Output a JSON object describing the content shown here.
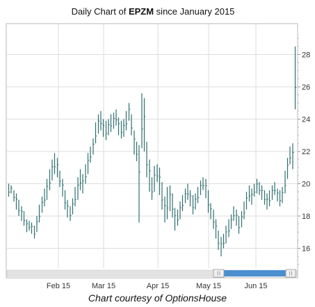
{
  "header": {
    "title_prefix": "Daily Chart of ",
    "ticker": "EPZM",
    "title_suffix": " since January 2015"
  },
  "footer": {
    "caption": "Chart courtesy of OptionsHouse"
  },
  "colors": {
    "bar": "#2f6f6f",
    "grid": "#dddddd",
    "border": "#b8b8b8",
    "scroll_thumb": "#4a90d0",
    "scroll_track": "#e0e0e0"
  },
  "chart_data": {
    "type": "ohlc",
    "title": "Daily Chart of EPZM since January 2015",
    "xlabel": "",
    "ylabel": "",
    "y_ticks": [
      16,
      18,
      20,
      22,
      24,
      26,
      28
    ],
    "ylim": [
      14.5,
      29.5
    ],
    "x_ticks": [
      "Feb 15",
      "Mar 15",
      "Apr 15",
      "May 15",
      "Jun 15"
    ],
    "grid": true,
    "bars": [
      [
        19.2,
        20.0
      ],
      [
        19.4,
        19.9
      ],
      [
        18.9,
        19.6
      ],
      [
        18.4,
        19.4
      ],
      [
        18.0,
        19.0
      ],
      [
        17.7,
        18.6
      ],
      [
        17.4,
        18.3
      ],
      [
        17.0,
        17.8
      ],
      [
        17.1,
        17.7
      ],
      [
        16.9,
        17.6
      ],
      [
        16.6,
        17.4
      ],
      [
        17.0,
        18.0
      ],
      [
        17.6,
        18.7
      ],
      [
        18.2,
        19.2
      ],
      [
        18.6,
        19.7
      ],
      [
        19.0,
        20.3
      ],
      [
        19.6,
        20.9
      ],
      [
        20.2,
        21.5
      ],
      [
        20.6,
        21.9
      ],
      [
        20.4,
        21.6
      ],
      [
        19.8,
        20.8
      ],
      [
        19.2,
        20.3
      ],
      [
        18.4,
        19.6
      ],
      [
        17.9,
        19.0
      ],
      [
        17.7,
        18.6
      ],
      [
        18.1,
        19.1
      ],
      [
        18.6,
        19.8
      ],
      [
        19.0,
        20.4
      ],
      [
        19.6,
        20.9
      ],
      [
        19.4,
        20.6
      ],
      [
        20.0,
        21.2
      ],
      [
        20.6,
        21.9
      ],
      [
        21.3,
        22.3
      ],
      [
        21.8,
        22.8
      ],
      [
        22.5,
        23.8
      ],
      [
        23.1,
        24.3
      ],
      [
        23.3,
        24.5
      ],
      [
        22.9,
        24.0
      ],
      [
        22.7,
        23.9
      ],
      [
        23.0,
        24.0
      ],
      [
        23.2,
        24.3
      ],
      [
        23.4,
        24.4
      ],
      [
        23.6,
        24.6
      ],
      [
        23.0,
        24.1
      ],
      [
        22.8,
        23.9
      ],
      [
        22.9,
        24.0
      ],
      [
        23.3,
        24.5
      ],
      [
        23.9,
        25.0
      ],
      [
        23.0,
        24.3
      ],
      [
        21.8,
        23.3
      ],
      [
        21.4,
        22.6
      ],
      [
        17.6,
        22.4
      ],
      [
        22.2,
        25.6
      ],
      [
        22.0,
        25.3
      ],
      [
        20.4,
        22.6
      ],
      [
        19.5,
        21.5
      ],
      [
        19.0,
        20.4
      ],
      [
        19.5,
        21.1
      ],
      [
        20.1,
        21.2
      ],
      [
        19.3,
        21.0
      ],
      [
        18.4,
        20.1
      ],
      [
        17.6,
        19.2
      ],
      [
        17.8,
        19.8
      ],
      [
        18.3,
        19.9
      ],
      [
        17.9,
        19.4
      ],
      [
        17.1,
        18.5
      ],
      [
        17.4,
        18.4
      ],
      [
        17.8,
        18.9
      ],
      [
        18.3,
        19.3
      ],
      [
        18.8,
        19.7
      ],
      [
        19.0,
        20.0
      ],
      [
        18.6,
        19.6
      ],
      [
        18.1,
        19.3
      ],
      [
        18.4,
        19.4
      ],
      [
        18.8,
        19.8
      ],
      [
        19.3,
        20.2
      ],
      [
        19.6,
        20.4
      ],
      [
        19.1,
        20.3
      ],
      [
        18.2,
        19.6
      ],
      [
        17.8,
        18.8
      ],
      [
        17.2,
        18.4
      ],
      [
        16.6,
        17.8
      ],
      [
        15.9,
        17.1
      ],
      [
        15.5,
        16.7
      ],
      [
        16.0,
        16.9
      ],
      [
        16.3,
        17.4
      ],
      [
        16.7,
        17.8
      ],
      [
        17.2,
        18.1
      ],
      [
        17.7,
        18.6
      ],
      [
        17.4,
        18.4
      ],
      [
        16.9,
        18.0
      ],
      [
        17.3,
        18.3
      ],
      [
        17.8,
        18.9
      ],
      [
        18.4,
        19.5
      ],
      [
        18.9,
        19.9
      ],
      [
        18.7,
        19.7
      ],
      [
        19.2,
        20.0
      ],
      [
        19.4,
        20.3
      ],
      [
        19.3,
        20.1
      ],
      [
        19.0,
        19.9
      ],
      [
        18.7,
        19.6
      ],
      [
        18.4,
        19.4
      ],
      [
        18.6,
        19.6
      ],
      [
        19.0,
        19.9
      ],
      [
        19.3,
        20.1
      ],
      [
        18.9,
        19.7
      ],
      [
        18.6,
        19.6
      ],
      [
        18.8,
        19.8
      ],
      [
        19.4,
        20.8
      ],
      [
        20.3,
        21.6
      ],
      [
        21.2,
        22.3
      ],
      [
        20.9,
        22.5
      ],
      [
        24.6,
        28.5
      ]
    ]
  }
}
